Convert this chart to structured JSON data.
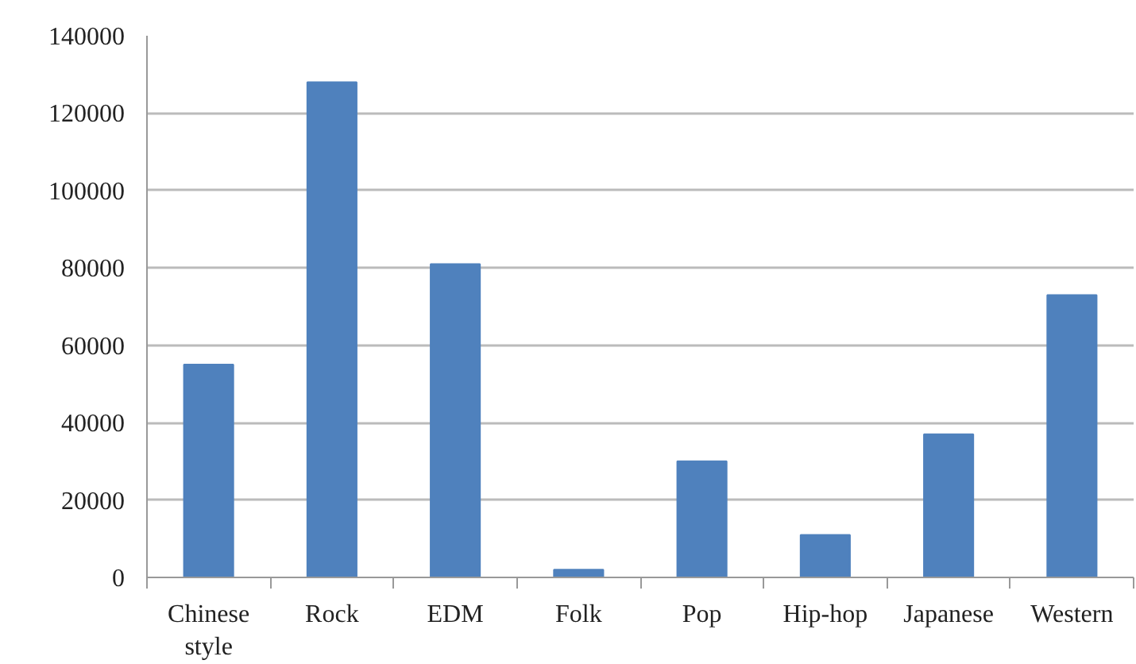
{
  "chart_data": {
    "type": "bar",
    "categories": [
      "Chinese style",
      "Rock",
      "EDM",
      "Folk",
      "Pop",
      "Hip-hop",
      "Japanese",
      "Western"
    ],
    "values": [
      55000,
      128000,
      81000,
      2000,
      30000,
      11000,
      37000,
      73000
    ],
    "color": "#4f81bd",
    "ylim": [
      0,
      140000
    ],
    "yticks": [
      0,
      20000,
      40000,
      60000,
      80000,
      100000,
      120000,
      140000
    ],
    "grid": "y"
  }
}
